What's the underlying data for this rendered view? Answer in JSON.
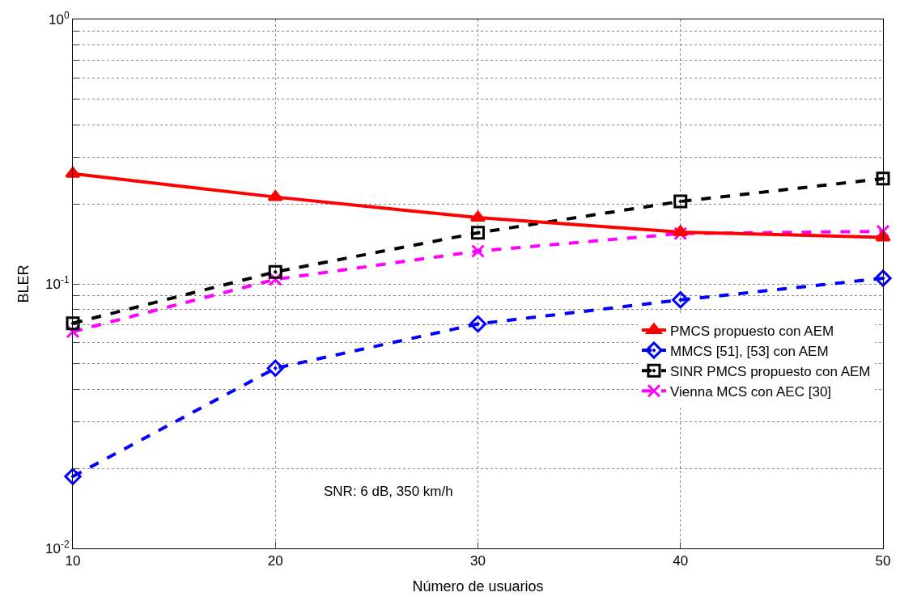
{
  "chart_data": {
    "type": "line",
    "xlabel": "Número de usuarios",
    "ylabel": "BLER",
    "x": [
      10,
      20,
      30,
      40,
      50
    ],
    "xlim": [
      10,
      50
    ],
    "xticks": [
      10,
      20,
      30,
      40,
      50
    ],
    "ylim": [
      0.01,
      1
    ],
    "log": "y",
    "grid": true,
    "legend": "bottom right",
    "yticks": [
      {
        "value": 0.01,
        "label": "10$^{-2}$"
      },
      {
        "value": 0.02,
        "label": null
      },
      {
        "value": 0.03,
        "label": null
      },
      {
        "value": 0.04,
        "label": null
      },
      {
        "value": 0.05,
        "label": null
      },
      {
        "value": 0.06,
        "label": null
      },
      {
        "value": 0.07,
        "label": null
      },
      {
        "value": 0.08,
        "label": null
      },
      {
        "value": 0.09,
        "label": null
      },
      {
        "value": 0.1,
        "label": "10$^{-1}$"
      },
      {
        "value": 0.2,
        "label": null
      },
      {
        "value": 0.3,
        "label": null
      },
      {
        "value": 0.4,
        "label": null
      },
      {
        "value": 0.5,
        "label": null
      },
      {
        "value": 0.6,
        "label": null
      },
      {
        "value": 0.7,
        "label": null
      },
      {
        "value": 0.8,
        "label": null
      },
      {
        "value": 0.9,
        "label": null
      },
      {
        "value": 1,
        "label": "10$^{0}$"
      }
    ],
    "series": [
      {
        "name": "PMCS propuesto con AEM",
        "color": "#ff0000",
        "marker": "triangle",
        "line_style": "solid",
        "values": [
          0.261,
          0.213,
          0.178,
          0.157,
          0.15
        ]
      },
      {
        "name": "MMCS [51], [53] con AEM",
        "color": "#0000ff",
        "marker": "diamond",
        "line_style": "dashed",
        "values": [
          0.0187,
          0.048,
          0.0706,
          0.087,
          0.105
        ]
      },
      {
        "name": "SINR PMCS propuesto con AEM",
        "color": "#000000",
        "marker": "square",
        "line_style": "dashed",
        "values": [
          0.071,
          0.111,
          0.156,
          0.205,
          0.25
        ]
      },
      {
        "name": "Vienna MCS con AEC [30]",
        "color": "#ff00ff",
        "marker": "cross",
        "line_style": "dashed",
        "values": [
          0.066,
          0.104,
          0.133,
          0.155,
          0.158
        ]
      }
    ],
    "annotations": [
      "SNR: 6 dB, 350 km/h"
    ]
  }
}
